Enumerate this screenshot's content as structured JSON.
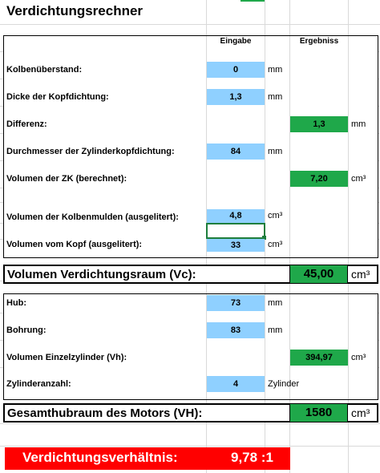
{
  "title": "Verdichtungsrechner",
  "columns": {
    "input": "Eingabe",
    "result": "Ergebniss"
  },
  "rows": {
    "kolbenueberstand": {
      "label": "Kolbenüberstand:",
      "value": "0",
      "unit": "mm"
    },
    "kopfdichtung": {
      "label": "Dicke der Kopfdichtung:",
      "value": "1,3",
      "unit": "mm"
    },
    "differenz": {
      "label": "Differenz:",
      "value": "1,3",
      "unit": "mm"
    },
    "durchmesser": {
      "label": "Durchmesser der Zylinderkopfdichtung:",
      "value": "84",
      "unit": "mm"
    },
    "volumen_zk": {
      "label": "Volumen der ZK (berechnet):",
      "value": "7,20",
      "unit": "cm³"
    },
    "kolbenmulden": {
      "label": "Volumen der Kolbenmulden (ausgelitert):",
      "value": "4,8",
      "unit": "cm³"
    },
    "kopf": {
      "label": "Volumen vom Kopf (ausgelitert):",
      "value": "33",
      "unit": "cm³"
    },
    "vc": {
      "label": "Volumen Verdichtungsraum (Vc):",
      "value": "45,00",
      "unit": "cm³"
    },
    "hub": {
      "label": "Hub:",
      "value": "73",
      "unit": "mm"
    },
    "bohrung": {
      "label": "Bohrung:",
      "value": "83",
      "unit": "mm"
    },
    "vh": {
      "label": "Volumen Einzelzylinder (Vh):",
      "value": "394,97",
      "unit": "cm³"
    },
    "zylinderanzahl": {
      "label": "Zylinderanzahl:",
      "value": "4",
      "unit": "Zylinder"
    },
    "VH": {
      "label": "Gesamthubraum des Motors (VH):",
      "value": "1580",
      "unit": "cm³"
    }
  },
  "ratio": {
    "label": "Verdichtungsverhältnis:",
    "value": "9,78 :1"
  },
  "colors": {
    "input": "#8fd0ff",
    "result": "#1fa84a",
    "banner": "#ff0000",
    "selection": "#1e7e3c"
  }
}
